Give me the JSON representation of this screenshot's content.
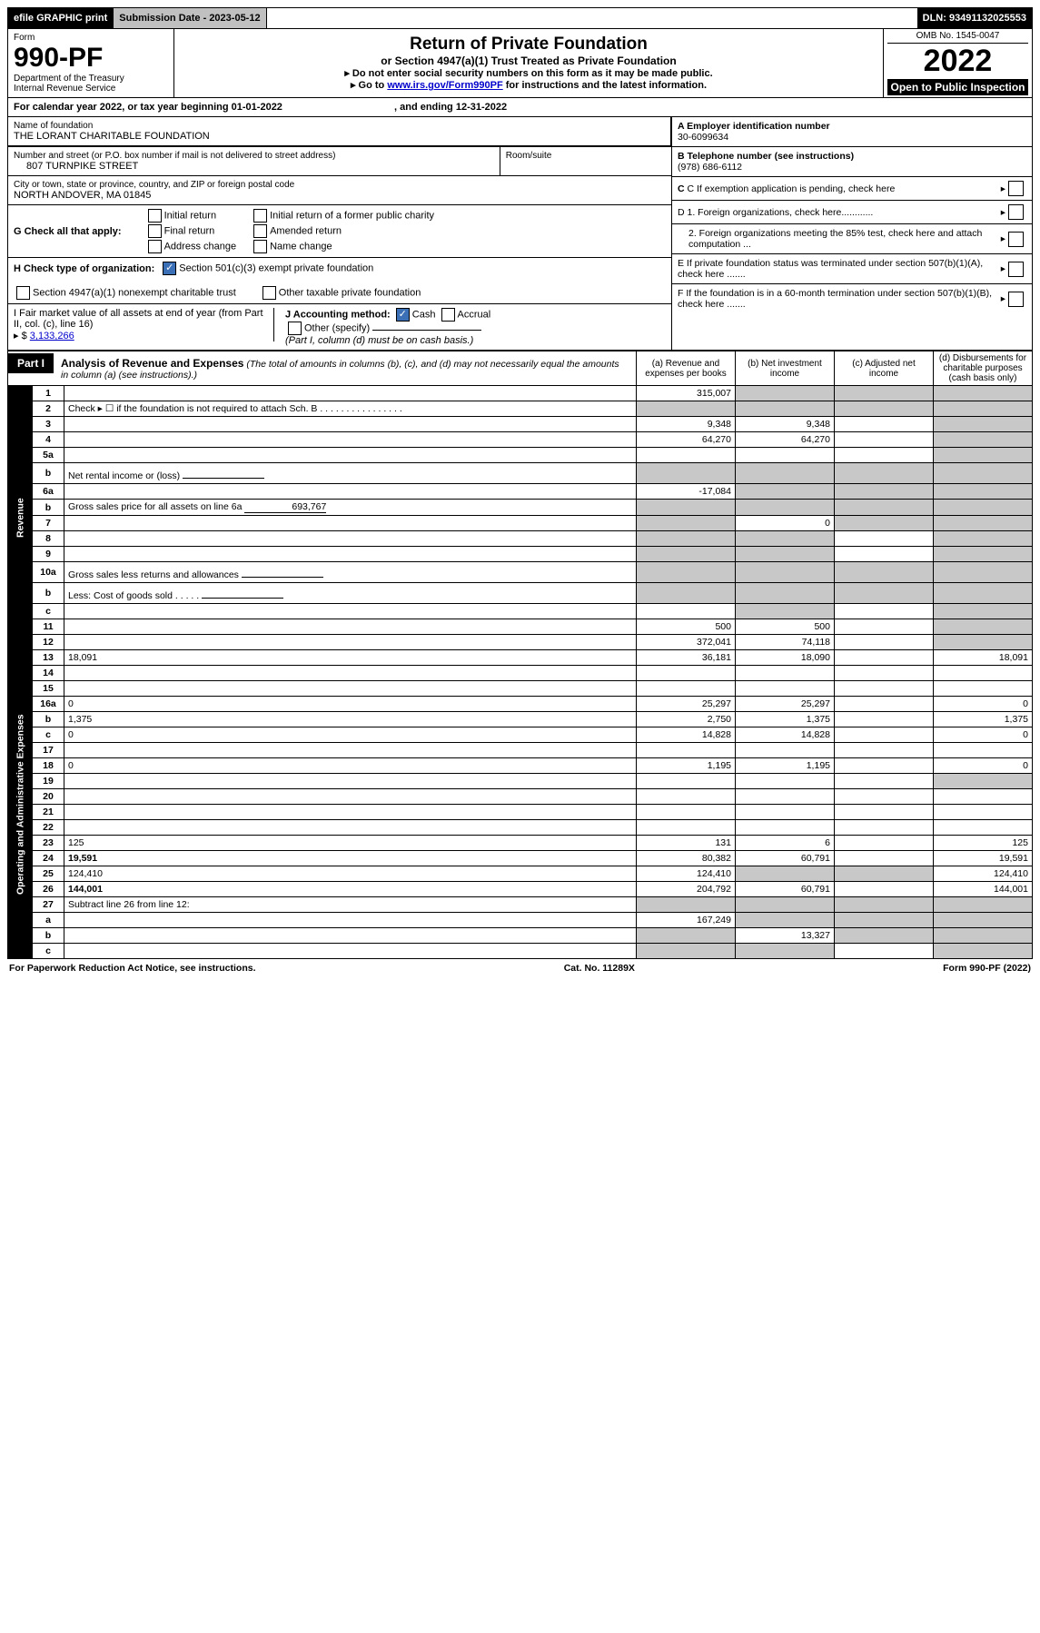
{
  "topbar": {
    "efile": "efile GRAPHIC print",
    "submission_label": "Submission Date - 2023-05-12",
    "dln": "DLN: 93491132025553"
  },
  "header": {
    "form_word": "Form",
    "form_num": "990-PF",
    "dept1": "Department of the Treasury",
    "dept2": "Internal Revenue Service",
    "title": "Return of Private Foundation",
    "sub": "or Section 4947(a)(1) Trust Treated as Private Foundation",
    "note1": "▸ Do not enter social security numbers on this form as it may be made public.",
    "note2_pre": "▸ Go to ",
    "note2_link": "www.irs.gov/Form990PF",
    "note2_post": " for instructions and the latest information.",
    "omb": "OMB No. 1545-0047",
    "year": "2022",
    "open": "Open to Public Inspection"
  },
  "cal": {
    "prefix": "For calendar year 2022, or tax year beginning ",
    "begin": "01-01-2022",
    "mid": ", and ending ",
    "end": "12-31-2022"
  },
  "ident": {
    "name_label": "Name of foundation",
    "name": "THE LORANT CHARITABLE FOUNDATION",
    "addr_label": "Number and street (or P.O. box number if mail is not delivered to street address)",
    "addr": "807 TURNPIKE STREET",
    "room_label": "Room/suite",
    "city_label": "City or town, state or province, country, and ZIP or foreign postal code",
    "city": "NORTH ANDOVER, MA  01845",
    "a_label": "A Employer identification number",
    "a_val": "30-6099634",
    "b_label": "B Telephone number (see instructions)",
    "b_val": "(978) 686-6112",
    "c_label": "C If exemption application is pending, check here"
  },
  "G": {
    "label": "G Check all that apply:",
    "opts": [
      "Initial return",
      "Final return",
      "Address change",
      "Initial return of a former public charity",
      "Amended return",
      "Name change"
    ]
  },
  "H": {
    "label": "H Check type of organization:",
    "opt1": "Section 501(c)(3) exempt private foundation",
    "opt2": "Section 4947(a)(1) nonexempt charitable trust",
    "opt3": "Other taxable private foundation"
  },
  "I": {
    "label": "I Fair market value of all assets at end of year (from Part II, col. (c), line 16)",
    "prefix": "▸ $",
    "value": "3,133,266"
  },
  "J": {
    "label": "J Accounting method:",
    "cash": "Cash",
    "accrual": "Accrual",
    "other": "Other (specify)",
    "note": "(Part I, column (d) must be on cash basis.)"
  },
  "D": {
    "d1": "D 1. Foreign organizations, check here............",
    "d2": "2. Foreign organizations meeting the 85% test, check here and attach computation ...",
    "e": "E  If private foundation status was terminated under section 507(b)(1)(A), check here .......",
    "f": "F  If the foundation is in a 60-month termination under section 507(b)(1)(B), check here ......."
  },
  "part1": {
    "tab": "Part I",
    "title": "Analysis of Revenue and Expenses",
    "note": " (The total of amounts in columns (b), (c), and (d) may not necessarily equal the amounts in column (a) (see instructions).)",
    "col_a": "(a) Revenue and expenses per books",
    "col_b": "(b) Net investment income",
    "col_c": "(c) Adjusted net income",
    "col_d": "(d) Disbursements for charitable purposes (cash basis only)"
  },
  "side": {
    "rev": "Revenue",
    "exp": "Operating and Administrative Expenses"
  },
  "rows": {
    "r1": {
      "n": "1",
      "d": "",
      "a": "315,007",
      "b": "",
      "c": "",
      "shade_bcd": true,
      "shade_d": true
    },
    "r2": {
      "n": "2",
      "d": "Check ▸ ☐ if the foundation is not required to attach Sch. B  . . . . . . . . . . . . . . . .",
      "shade_all": true
    },
    "r3": {
      "n": "3",
      "d": "",
      "a": "9,348",
      "b": "9,348",
      "c": "",
      "shade_d": true
    },
    "r4": {
      "n": "4",
      "d": "",
      "a": "64,270",
      "b": "64,270",
      "c": "",
      "shade_d": true
    },
    "r5a": {
      "n": "5a",
      "d": "",
      "a": "",
      "b": "",
      "c": "",
      "shade_d": true
    },
    "r5b": {
      "n": "b",
      "d": "Net rental income or (loss)",
      "inline_box": true,
      "shade_all": true
    },
    "r6a": {
      "n": "6a",
      "d": "",
      "a": "-17,084",
      "b": "",
      "c": "",
      "shade_bcd": true,
      "shade_d": true
    },
    "r6b": {
      "n": "b",
      "d": "Gross sales price for all assets on line 6a",
      "inline_val": "693,767",
      "shade_all": true
    },
    "r7": {
      "n": "7",
      "d": "",
      "a": "",
      "b": "0",
      "c": "",
      "shade_a": true,
      "shade_cd": true,
      "shade_d": true
    },
    "r8": {
      "n": "8",
      "d": "",
      "a": "",
      "b": "",
      "c": "",
      "shade_ab": true,
      "shade_d": true
    },
    "r9": {
      "n": "9",
      "d": "",
      "a": "",
      "b": "",
      "c": "",
      "shade_ab": true,
      "shade_d": true
    },
    "r10a": {
      "n": "10a",
      "d": "Gross sales less returns and allowances",
      "inline_box": true,
      "shade_all": true
    },
    "r10b": {
      "n": "b",
      "d": "Less: Cost of goods sold    .  .  .  .  .",
      "inline_box": true,
      "shade_all": true
    },
    "r10c": {
      "n": "c",
      "d": "",
      "a": "",
      "b": "",
      "c": "",
      "shade_b": true,
      "shade_d": true
    },
    "r11": {
      "n": "11",
      "d": "",
      "a": "500",
      "b": "500",
      "c": "",
      "shade_d": true
    },
    "r12": {
      "n": "12",
      "d": "",
      "a": "372,041",
      "b": "74,118",
      "c": "",
      "bold": true,
      "shade_d": true
    },
    "r13": {
      "n": "13",
      "d": "18,091",
      "a": "36,181",
      "b": "18,090",
      "c": ""
    },
    "r14": {
      "n": "14",
      "d": "",
      "a": "",
      "b": "",
      "c": ""
    },
    "r15": {
      "n": "15",
      "d": "",
      "a": "",
      "b": "",
      "c": ""
    },
    "r16a": {
      "n": "16a",
      "d": "0",
      "a": "25,297",
      "b": "25,297",
      "c": ""
    },
    "r16b": {
      "n": "b",
      "d": "1,375",
      "a": "2,750",
      "b": "1,375",
      "c": ""
    },
    "r16c": {
      "n": "c",
      "d": "0",
      "a": "14,828",
      "b": "14,828",
      "c": ""
    },
    "r17": {
      "n": "17",
      "d": "",
      "a": "",
      "b": "",
      "c": ""
    },
    "r18": {
      "n": "18",
      "d": "0",
      "a": "1,195",
      "b": "1,195",
      "c": ""
    },
    "r19": {
      "n": "19",
      "d": "",
      "a": "",
      "b": "",
      "c": "",
      "shade_d": true
    },
    "r20": {
      "n": "20",
      "d": "",
      "a": "",
      "b": "",
      "c": ""
    },
    "r21": {
      "n": "21",
      "d": "",
      "a": "",
      "b": "",
      "c": ""
    },
    "r22": {
      "n": "22",
      "d": "",
      "a": "",
      "b": "",
      "c": ""
    },
    "r23": {
      "n": "23",
      "d": "125",
      "a": "131",
      "b": "6",
      "c": ""
    },
    "r24": {
      "n": "24",
      "d": "19,591",
      "a": "80,382",
      "b": "60,791",
      "c": "",
      "bold": true
    },
    "r25": {
      "n": "25",
      "d": "124,410",
      "a": "124,410",
      "b": "",
      "c": "",
      "shade_bc": true
    },
    "r26": {
      "n": "26",
      "d": "144,001",
      "a": "204,792",
      "b": "60,791",
      "c": "",
      "bold": true
    },
    "r27": {
      "n": "27",
      "d": "Subtract line 26 from line 12:",
      "shade_all": true,
      "bold": false
    },
    "r27a": {
      "n": "a",
      "d": "",
      "a": "167,249",
      "b": "",
      "c": "",
      "bold": true,
      "shade_bcd": true,
      "shade_d": true
    },
    "r27b": {
      "n": "b",
      "d": "",
      "a": "",
      "b": "13,327",
      "c": "",
      "bold": true,
      "shade_a": true,
      "shade_cd": true,
      "shade_d": true
    },
    "r27c": {
      "n": "c",
      "d": "",
      "a": "",
      "b": "",
      "c": "",
      "bold": true,
      "shade_ab": true,
      "shade_d": true
    }
  },
  "row_order_rev": [
    "r1",
    "r2",
    "r3",
    "r4",
    "r5a",
    "r5b",
    "r6a",
    "r6b",
    "r7",
    "r8",
    "r9",
    "r10a",
    "r10b",
    "r10c",
    "r11",
    "r12"
  ],
  "row_order_exp": [
    "r13",
    "r14",
    "r15",
    "r16a",
    "r16b",
    "r16c",
    "r17",
    "r18",
    "r19",
    "r20",
    "r21",
    "r22",
    "r23",
    "r24",
    "r25",
    "r26",
    "r27",
    "r27a",
    "r27b",
    "r27c"
  ],
  "footer": {
    "left": "For Paperwork Reduction Act Notice, see instructions.",
    "mid": "Cat. No. 11289X",
    "right": "Form 990-PF (2022)"
  },
  "colors": {
    "shade": "#c8c8c8",
    "link": "#0000cc",
    "check_fill": "#3b6fb6"
  }
}
